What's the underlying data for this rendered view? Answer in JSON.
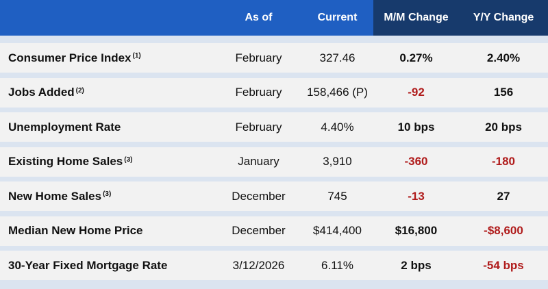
{
  "table": {
    "header": [
      "As of",
      "Current",
      "M/M Change",
      "Y/Y Change"
    ],
    "rows": [
      {
        "label": "Consumer Price Index",
        "note": "(1)",
        "as_of": "February",
        "current": "327.46",
        "mm": "0.27%",
        "yy": "2.40%"
      },
      {
        "label": "Jobs Added",
        "note": "(2)",
        "as_of": "February",
        "current": "158,466 (P)",
        "mm": "-92",
        "yy": "156"
      },
      {
        "label": "Unemployment Rate",
        "as_of": "February",
        "current": "4.40%",
        "mm": "10 bps",
        "yy": "20 bps"
      },
      {
        "label": "Existing Home Sales",
        "note": "(3)",
        "as_of": "January",
        "current": "3,910",
        "mm": "-360",
        "yy": "-180"
      },
      {
        "label": "New Home Sales",
        "note": "(3)",
        "as_of": "December",
        "current": "745",
        "mm": "-13",
        "yy": "27"
      },
      {
        "label": "Median New Home Price",
        "as_of": "December",
        "current": "$414,400",
        "mm": "$16,800",
        "yy": "-$8,600"
      },
      {
        "label": "30-Year Fixed Mortgage Rate",
        "as_of": "3/12/2026",
        "current": "6.11%",
        "mm": "2 bps",
        "yy": "-54 bps"
      }
    ]
  }
}
